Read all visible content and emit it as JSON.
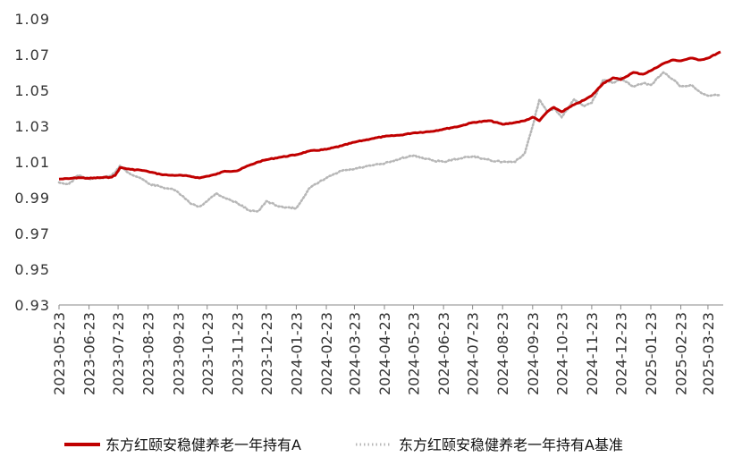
{
  "chart_data": {
    "type": "line",
    "y_ticks": [
      "1.09",
      "1.07",
      "1.05",
      "1.03",
      "1.01",
      "0.99",
      "0.97",
      "0.95",
      "0.93"
    ],
    "ylim": [
      0.93,
      1.09
    ],
    "x_ticks": [
      "2023-05-23",
      "2023-06-23",
      "2023-07-23",
      "2023-08-23",
      "2023-09-23",
      "2023-10-23",
      "2023-11-23",
      "2023-12-23",
      "2024-01-23",
      "2024-02-23",
      "2024-03-23",
      "2024-04-23",
      "2024-05-23",
      "2024-06-23",
      "2024-07-23",
      "2024-08-23",
      "2024-09-23",
      "2024-10-23",
      "2024-11-23",
      "2024-12-23",
      "2025-01-23",
      "2025-02-23",
      "2025-03-23"
    ],
    "xlim": [
      "2023-05-23",
      "2025-04-05"
    ],
    "grid": false,
    "legend_position": "bottom",
    "series": [
      {
        "name": "东方红颐安稳健养老一年持有A",
        "color": "#C00000",
        "style": "solid",
        "x": [
          "2023-05-23",
          "2023-06-02",
          "2023-06-12",
          "2023-06-23",
          "2023-07-05",
          "2023-07-15",
          "2023-07-20",
          "2023-07-25",
          "2023-08-05",
          "2023-08-15",
          "2023-08-23",
          "2023-09-05",
          "2023-09-15",
          "2023-09-23",
          "2023-10-05",
          "2023-10-15",
          "2023-10-23",
          "2023-11-01",
          "2023-11-10",
          "2023-11-23",
          "2023-12-05",
          "2023-12-15",
          "2023-12-23",
          "2024-01-05",
          "2024-01-23",
          "2024-02-05",
          "2024-02-23",
          "2024-03-10",
          "2024-03-23",
          "2024-04-10",
          "2024-04-23",
          "2024-05-10",
          "2024-05-23",
          "2024-06-10",
          "2024-06-23",
          "2024-07-10",
          "2024-07-23",
          "2024-08-10",
          "2024-08-23",
          "2024-09-05",
          "2024-09-15",
          "2024-09-23",
          "2024-09-30",
          "2024-10-08",
          "2024-10-15",
          "2024-10-23",
          "2024-11-05",
          "2024-11-15",
          "2024-11-23",
          "2024-12-05",
          "2024-12-15",
          "2024-12-23",
          "2025-01-05",
          "2025-01-15",
          "2025-01-23",
          "2025-02-05",
          "2025-02-15",
          "2025-02-23",
          "2025-03-05",
          "2025-03-15",
          "2025-03-23",
          "2025-04-05"
        ],
        "y": [
          1.0004,
          1.0006,
          1.0012,
          1.0008,
          1.0012,
          1.0014,
          1.0024,
          1.0068,
          1.0058,
          1.0054,
          1.0046,
          1.003,
          1.0025,
          1.0025,
          1.002,
          1.001,
          1.002,
          1.003,
          1.0048,
          1.005,
          1.008,
          1.01,
          1.0112,
          1.0125,
          1.014,
          1.016,
          1.017,
          1.019,
          1.021,
          1.023,
          1.0242,
          1.025,
          1.0262,
          1.027,
          1.0283,
          1.03,
          1.032,
          1.033,
          1.031,
          1.032,
          1.033,
          1.035,
          1.033,
          1.038,
          1.0405,
          1.038,
          1.042,
          1.0445,
          1.047,
          1.054,
          1.057,
          1.056,
          1.06,
          1.059,
          1.061,
          1.065,
          1.067,
          1.0665,
          1.068,
          1.067,
          1.068,
          1.0715
        ]
      },
      {
        "name": "东方红颐安稳健养老一年持有A基准",
        "color": "#B7B7B7",
        "style": "dotted",
        "x": [
          "2023-05-23",
          "2023-06-02",
          "2023-06-12",
          "2023-06-23",
          "2023-07-05",
          "2023-07-15",
          "2023-07-20",
          "2023-07-25",
          "2023-08-05",
          "2023-08-15",
          "2023-08-23",
          "2023-09-05",
          "2023-09-15",
          "2023-09-23",
          "2023-10-05",
          "2023-10-15",
          "2023-10-23",
          "2023-11-01",
          "2023-11-10",
          "2023-11-23",
          "2023-12-05",
          "2023-12-15",
          "2023-12-23",
          "2024-01-05",
          "2024-01-23",
          "2024-02-05",
          "2024-02-23",
          "2024-03-10",
          "2024-03-23",
          "2024-04-10",
          "2024-04-23",
          "2024-05-10",
          "2024-05-23",
          "2024-06-10",
          "2024-06-23",
          "2024-07-10",
          "2024-07-23",
          "2024-08-10",
          "2024-08-23",
          "2024-09-05",
          "2024-09-15",
          "2024-09-23",
          "2024-09-30",
          "2024-10-08",
          "2024-10-15",
          "2024-10-23",
          "2024-11-05",
          "2024-11-15",
          "2024-11-23",
          "2024-12-05",
          "2024-12-15",
          "2024-12-23",
          "2025-01-05",
          "2025-01-15",
          "2025-01-23",
          "2025-02-05",
          "2025-02-15",
          "2025-02-23",
          "2025-03-05",
          "2025-03-15",
          "2025-03-23",
          "2025-04-05"
        ],
        "y": [
          0.9985,
          0.9975,
          1.0025,
          1.0005,
          1.001,
          1.002,
          1.004,
          1.008,
          1.003,
          1.001,
          0.998,
          0.996,
          0.995,
          0.993,
          0.987,
          0.985,
          0.988,
          0.9925,
          0.99,
          0.987,
          0.983,
          0.9825,
          0.988,
          0.985,
          0.984,
          0.995,
          1.001,
          1.005,
          1.006,
          1.008,
          1.009,
          1.012,
          1.0135,
          1.011,
          1.01,
          1.012,
          1.013,
          1.011,
          1.01,
          1.01,
          1.015,
          1.03,
          1.045,
          1.038,
          1.04,
          1.035,
          1.045,
          1.041,
          1.043,
          1.056,
          1.054,
          1.057,
          1.052,
          1.054,
          1.053,
          1.06,
          1.056,
          1.052,
          1.053,
          1.049,
          1.047,
          1.0475
        ]
      }
    ]
  }
}
